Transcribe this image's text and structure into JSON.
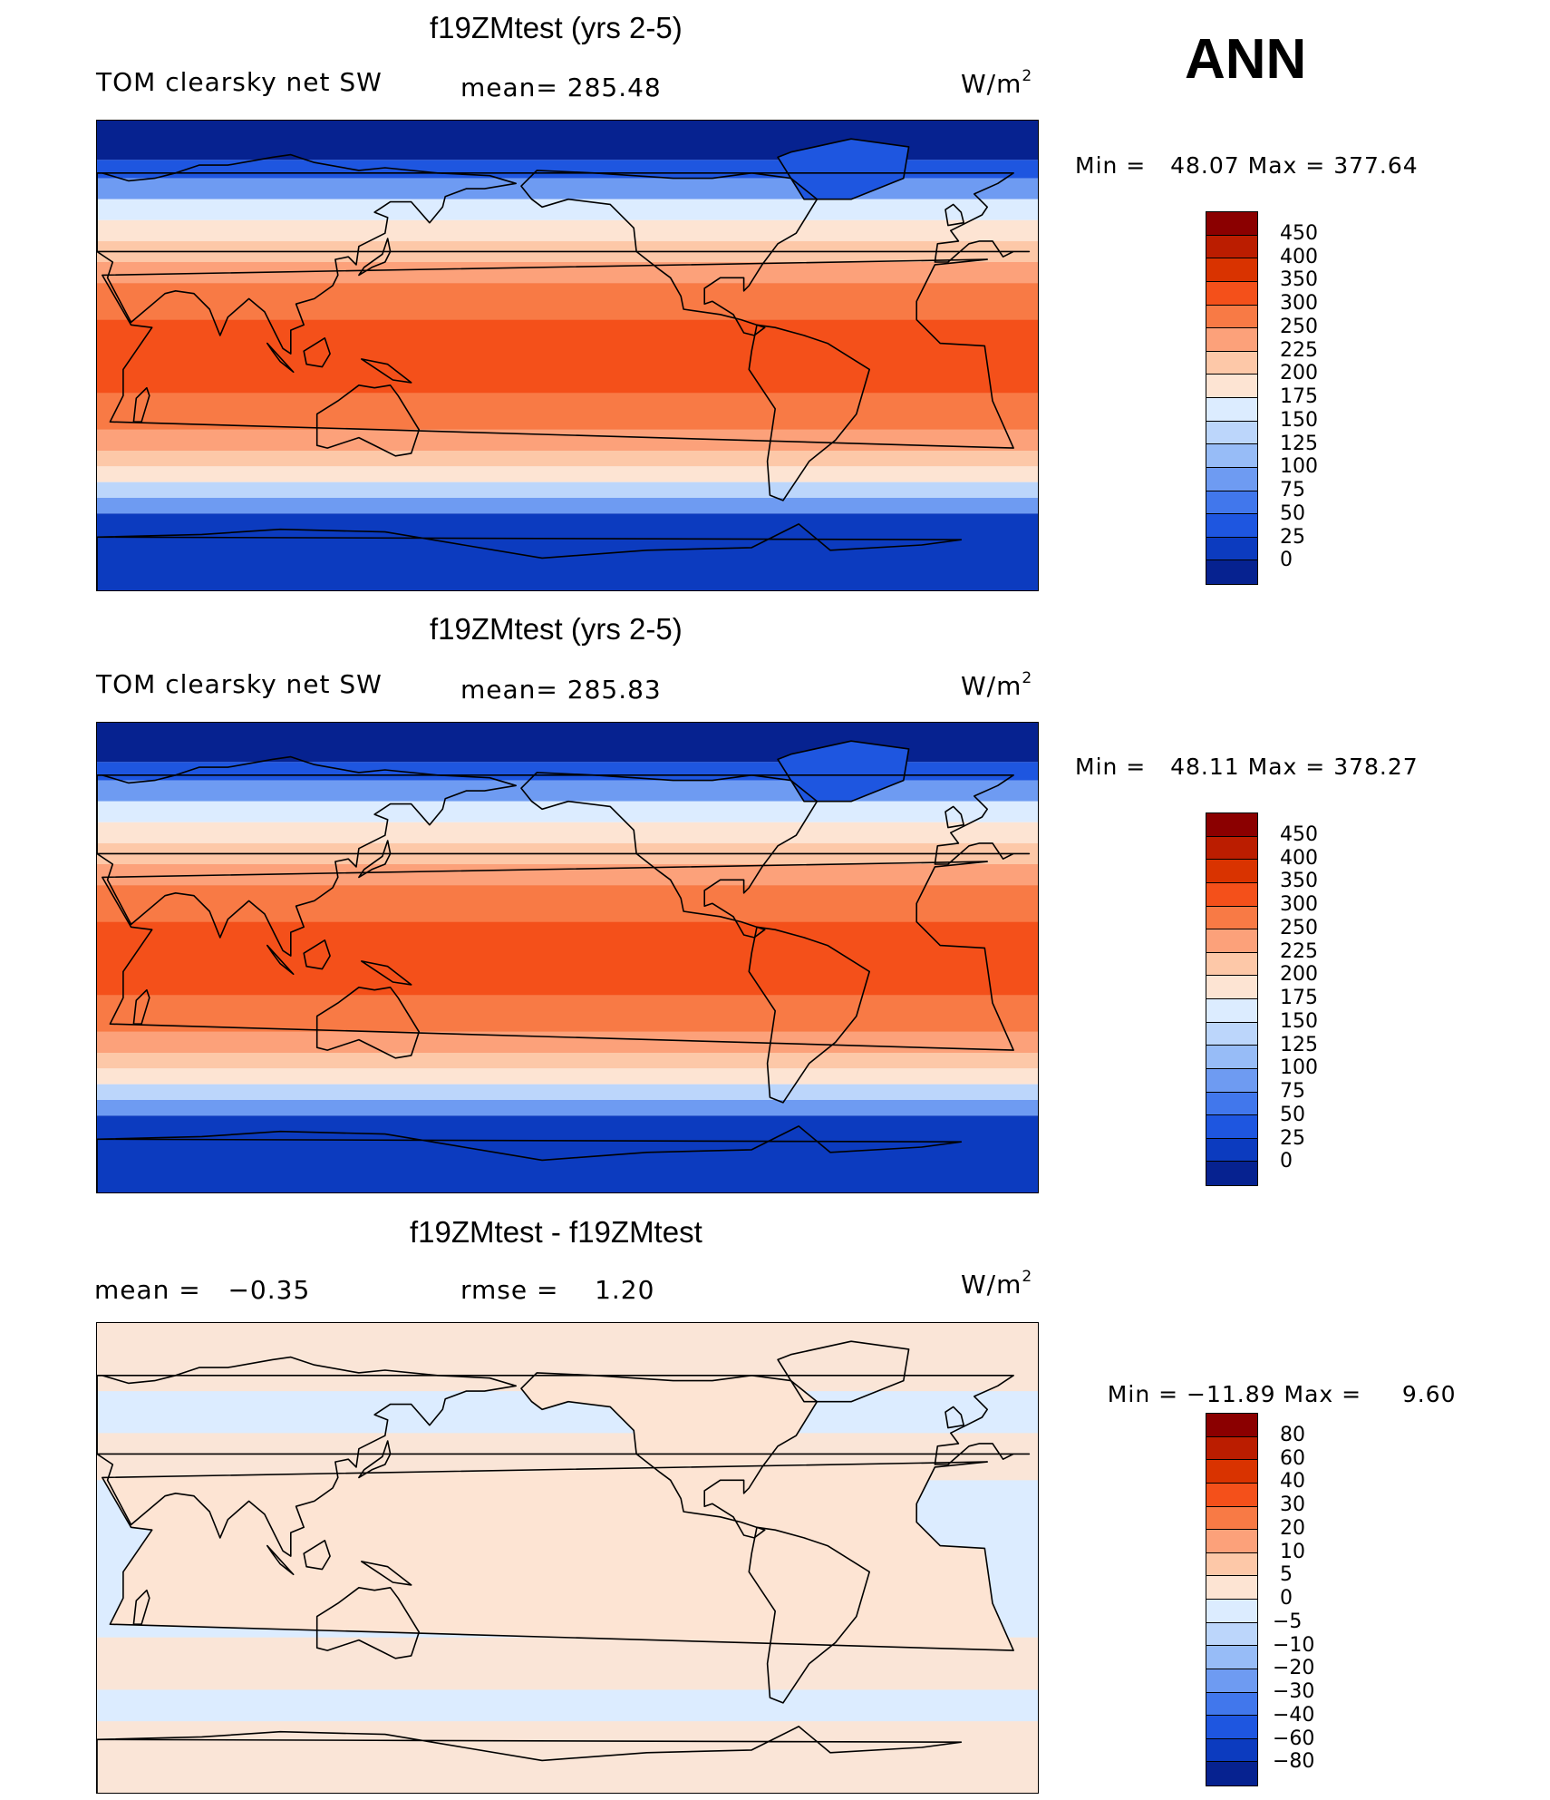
{
  "season": "ANN",
  "panels": [
    {
      "title": "f19ZMtest (yrs 2-5)",
      "left_text": "TOM clearsky net SW",
      "center_text": "mean= 285.48",
      "units_base": "W/m",
      "units_exp": "2",
      "min_label": "Min =",
      "min_value": "48.07",
      "max_label": "Max =",
      "max_value": "377.64",
      "levels": [
        "450",
        "400",
        "350",
        "300",
        "250",
        "225",
        "200",
        "175",
        "150",
        "125",
        "100",
        "75",
        "50",
        "25",
        "0"
      ],
      "colors": [
        "#8b0000",
        "#bb1d00",
        "#d93300",
        "#f4501a",
        "#f87a45",
        "#fca17a",
        "#fdc8a8",
        "#fde4d3",
        "#dcecff",
        "#bcd6fb",
        "#97bcf7",
        "#6e9bf2",
        "#4177ec",
        "#1e56e0",
        "#0c3bbf",
        "#062290"
      ],
      "field": "full"
    },
    {
      "title": "f19ZMtest (yrs 2-5)",
      "left_text": "TOM clearsky net SW",
      "center_text": "mean= 285.83",
      "units_base": "W/m",
      "units_exp": "2",
      "min_label": "Min =",
      "min_value": "48.11",
      "max_label": "Max =",
      "max_value": "378.27",
      "levels": [
        "450",
        "400",
        "350",
        "300",
        "250",
        "225",
        "200",
        "175",
        "150",
        "125",
        "100",
        "75",
        "50",
        "25",
        "0"
      ],
      "colors": [
        "#8b0000",
        "#bb1d00",
        "#d93300",
        "#f4501a",
        "#f87a45",
        "#fca17a",
        "#fdc8a8",
        "#fde4d3",
        "#dcecff",
        "#bcd6fb",
        "#97bcf7",
        "#6e9bf2",
        "#4177ec",
        "#1e56e0",
        "#0c3bbf",
        "#062290"
      ],
      "field": "full"
    },
    {
      "title": "f19ZMtest - f19ZMtest",
      "left_text": "mean =   −0.35",
      "center_text": "rmse =    1.20",
      "units_base": "W/m",
      "units_exp": "2",
      "min_label": "Min =",
      "min_value": "−11.89",
      "max_label": "Max =",
      "max_value": "9.60",
      "levels": [
        "80",
        "60",
        "40",
        "30",
        "20",
        "10",
        "5",
        "0",
        "−5",
        "−10",
        "−20",
        "−30",
        "−40",
        "−60",
        "−80"
      ],
      "colors": [
        "#8b0000",
        "#bb1d00",
        "#d93300",
        "#f4501a",
        "#f87a45",
        "#fca17a",
        "#fdc8a8",
        "#fde4d3",
        "#dcecff",
        "#bcd6fb",
        "#97bcf7",
        "#6e9bf2",
        "#4177ec",
        "#1e56e0",
        "#0c3bbf",
        "#062290"
      ],
      "field": "diff"
    }
  ]
}
